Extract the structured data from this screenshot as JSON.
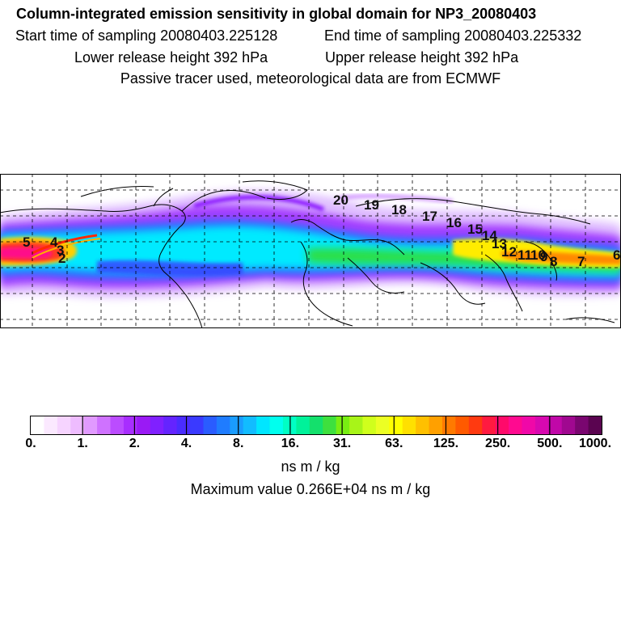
{
  "header": {
    "title": "Column-integrated emission sensitivity in global domain for NP3_20080403",
    "line1_start": "Start time of sampling 20080403.225128",
    "line1_end": "End time of sampling 20080403.225332",
    "line2_lower": "Lower release height  392 hPa",
    "line2_upper": "Upper release height  392 hPa",
    "line3": "Passive tracer used, meteorological data are from ECMWF"
  },
  "map": {
    "track_labels": [
      "20",
      "19",
      "18",
      "17",
      "16",
      "15",
      "14",
      "13",
      "12",
      "11",
      "10",
      "9",
      "8",
      "7",
      "6",
      "5",
      "4",
      "3",
      "2"
    ],
    "graticule": "dashed"
  },
  "colorbar": {
    "labels": [
      "0.",
      "1.",
      "2.",
      "4.",
      "8.",
      "16.",
      "31.",
      "63.",
      "125.",
      "250.",
      "500.",
      "1000."
    ],
    "colors": [
      "#ffffff",
      "#fbe9ff",
      "#f6d4ff",
      "#eebcff",
      "#e19aff",
      "#cf72ff",
      "#bb4cff",
      "#a82eff",
      "#9a1af5",
      "#8020ff",
      "#6424ff",
      "#4a2cff",
      "#3a3aff",
      "#2a5cff",
      "#1f7cff",
      "#1a9cff",
      "#12bcff",
      "#00e6ff",
      "#00ffee",
      "#00ffc4",
      "#00f29a",
      "#14e06c",
      "#3ee03e",
      "#78ee12",
      "#a8f418",
      "#d0ff1c",
      "#ecff24",
      "#ffff00",
      "#ffe000",
      "#ffc000",
      "#ffa000",
      "#ff7a00",
      "#ff5a00",
      "#ff3a10",
      "#ff1a40",
      "#ff0a6a",
      "#ff0a90",
      "#f008a8",
      "#d808b0",
      "#c008a8",
      "#a00890",
      "#7a0670",
      "#5a0450"
    ],
    "units": "ns m / kg",
    "maximum": "Maximum value  0.266E+04 ns m / kg"
  }
}
